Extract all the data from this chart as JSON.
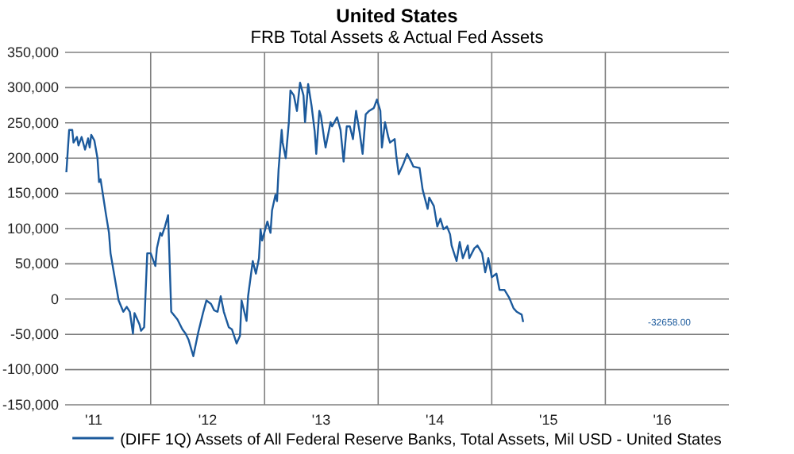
{
  "chart_data": {
    "type": "line",
    "title": "United States",
    "subtitle": "FRB Total Assets & Actual Fed Assets",
    "x": [
      "2011-04-05",
      "2011-04-14",
      "2011-04-24",
      "2011-04-28",
      "2011-05-09",
      "2011-05-14",
      "2011-05-24",
      "2011-06-04",
      "2011-06-14",
      "2011-06-19",
      "2011-06-24",
      "2011-07-04",
      "2011-07-14",
      "2011-07-19",
      "2011-07-24",
      "2011-08-10",
      "2011-08-20",
      "2011-08-25",
      "2011-09-20",
      "2011-10-05",
      "2011-10-16",
      "2011-10-26",
      "2011-11-05",
      "2011-11-10",
      "2011-11-26",
      "2011-12-01",
      "2011-12-11",
      "2011-12-21",
      "2012-01-01",
      "2012-01-16",
      "2012-01-21",
      "2012-02-01",
      "2012-02-06",
      "2012-02-16",
      "2012-02-26",
      "2012-03-07",
      "2012-03-27",
      "2012-04-12",
      "2012-04-22",
      "2012-05-02",
      "2012-05-17",
      "2012-06-02",
      "2012-06-17",
      "2012-06-28",
      "2012-07-13",
      "2012-07-23",
      "2012-08-03",
      "2012-08-13",
      "2012-08-23",
      "2012-09-08",
      "2012-09-18",
      "2012-10-03",
      "2012-10-14",
      "2012-10-19",
      "2012-11-04",
      "2012-11-09",
      "2012-11-24",
      "2012-12-04",
      "2012-12-14",
      "2012-12-19",
      "2012-12-24",
      "2013-01-10",
      "2013-01-20",
      "2013-01-25",
      "2013-02-05",
      "2013-02-10",
      "2013-02-15",
      "2013-02-25",
      "2013-02-28",
      "2013-03-10",
      "2013-03-20",
      "2013-03-25",
      "2013-04-05",
      "2013-04-15",
      "2013-04-25",
      "2013-05-06",
      "2013-05-11",
      "2013-05-21",
      "2013-06-01",
      "2013-06-11",
      "2013-06-16",
      "2013-06-26",
      "2013-07-01",
      "2013-07-11",
      "2013-07-16",
      "2013-08-01",
      "2013-08-06",
      "2013-08-22",
      "2013-09-02",
      "2013-09-12",
      "2013-09-22",
      "2013-10-02",
      "2013-10-12",
      "2013-10-22",
      "2013-11-02",
      "2013-11-12",
      "2013-11-22",
      "2013-12-03",
      "2013-12-18",
      "2013-12-28",
      "2014-01-08",
      "2014-01-13",
      "2014-01-23",
      "2014-02-03",
      "2014-02-08",
      "2014-02-23",
      "2014-02-28",
      "2014-03-08",
      "2014-03-24",
      "2014-04-04",
      "2014-04-19",
      "2014-04-24",
      "2014-05-14",
      "2014-05-24",
      "2014-06-09",
      "2014-06-14",
      "2014-06-29",
      "2014-07-10",
      "2014-07-20",
      "2014-07-30",
      "2014-08-10",
      "2014-08-20",
      "2014-08-25",
      "2014-09-10",
      "2014-09-20",
      "2014-09-30",
      "2014-10-16",
      "2014-10-21",
      "2014-11-06",
      "2014-11-16",
      "2014-12-01",
      "2014-12-11",
      "2014-12-21",
      "2015-01-01",
      "2015-01-16",
      "2015-01-26",
      "2015-02-11",
      "2015-02-26",
      "2015-03-12",
      "2015-03-22",
      "2015-04-07",
      "2015-04-12"
    ],
    "series": [
      {
        "name": "(DIFF 1Q) Assets of All Federal Reserve Banks, Total Assets, Mil USD - United States",
        "color": "#1c5a9c",
        "values": [
          180000,
          240000,
          240000,
          222000,
          230000,
          218000,
          230000,
          212000,
          228000,
          215000,
          233000,
          225000,
          200000,
          166000,
          170000,
          121000,
          94000,
          65000,
          -2000,
          -18000,
          -11000,
          -18000,
          -49000,
          -20000,
          -36000,
          -45000,
          -40000,
          65000,
          65000,
          47000,
          72000,
          94000,
          90000,
          103000,
          119000,
          -18000,
          -29000,
          -43000,
          -49000,
          -58000,
          -81000,
          -47000,
          -20000,
          -2000,
          -7000,
          -16000,
          -18000,
          4000,
          -18000,
          -40000,
          -43000,
          -63000,
          -52000,
          -2000,
          -31000,
          4000,
          54000,
          36000,
          58000,
          99000,
          83000,
          110000,
          94000,
          126000,
          148000,
          139000,
          184000,
          240000,
          222000,
          200000,
          251000,
          296000,
          289000,
          267000,
          307000,
          289000,
          251000,
          305000,
          274000,
          238000,
          206000,
          267000,
          260000,
          229000,
          215000,
          251000,
          245000,
          258000,
          240000,
          195000,
          245000,
          245000,
          227000,
          267000,
          238000,
          206000,
          262000,
          267000,
          271000,
          283000,
          267000,
          215000,
          251000,
          229000,
          222000,
          227000,
          204000,
          177000,
          193000,
          206000,
          193000,
          188000,
          186000,
          155000,
          128000,
          144000,
          132000,
          103000,
          114000,
          99000,
          103000,
          92000,
          76000,
          54000,
          81000,
          58000,
          76000,
          58000,
          72000,
          76000,
          65000,
          38000,
          58000,
          31000,
          36000,
          13000,
          13000,
          2000,
          -13000,
          -18000,
          -22000,
          -32658
        ]
      }
    ],
    "xlim": [
      "2011-04-01",
      "2017-02-01"
    ],
    "xticks": [
      {
        "value": "2011-07-02",
        "label": "'11"
      },
      {
        "value": "2012-01-01",
        "label": null
      },
      {
        "value": "2012-07-02",
        "label": "'12"
      },
      {
        "value": "2013-01-01",
        "label": null
      },
      {
        "value": "2013-07-02",
        "label": "'13"
      },
      {
        "value": "2014-01-01",
        "label": null
      },
      {
        "value": "2014-07-02",
        "label": "'14"
      },
      {
        "value": "2015-01-01",
        "label": null
      },
      {
        "value": "2015-07-02",
        "label": "'15"
      },
      {
        "value": "2016-01-01",
        "label": null
      },
      {
        "value": "2016-07-02",
        "label": "'16"
      }
    ],
    "ylim": [
      -150000,
      350000
    ],
    "yticks": [
      {
        "value": -150000,
        "label": "-150,000"
      },
      {
        "value": -100000,
        "label": "-100,000"
      },
      {
        "value": -50000,
        "label": "-50,000"
      },
      {
        "value": 0,
        "label": "0"
      },
      {
        "value": 50000,
        "label": "50,000"
      },
      {
        "value": 100000,
        "label": "100,000"
      },
      {
        "value": 150000,
        "label": "150,000"
      },
      {
        "value": 200000,
        "label": "200,000"
      },
      {
        "value": 250000,
        "label": "250,000"
      },
      {
        "value": 300000,
        "label": "300,000"
      },
      {
        "value": 350000,
        "label": "350,000"
      }
    ],
    "grid": true,
    "legend": "bottom",
    "line_style": "solid",
    "marker": "none",
    "annotations": [
      "-32658.00"
    ]
  }
}
